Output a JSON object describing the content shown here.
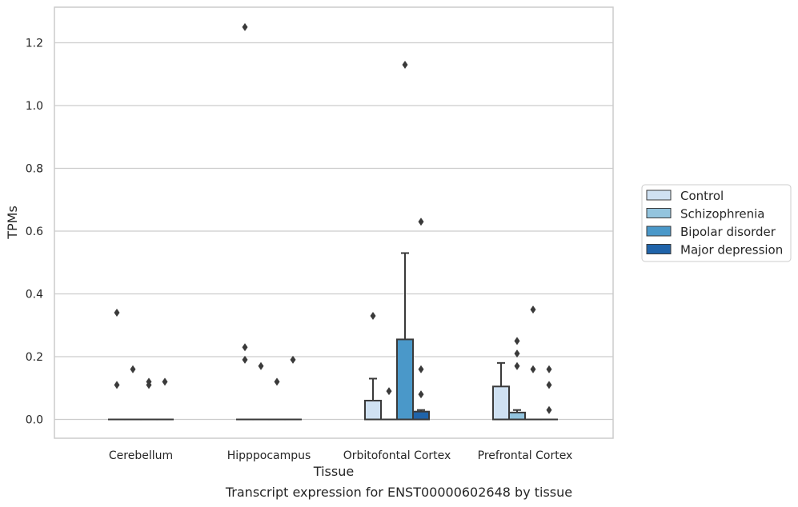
{
  "chart_data": {
    "type": "box",
    "xlabel": "Tissue",
    "ylabel": "TPMs",
    "ylim": [
      -0.06,
      1.32
    ],
    "yticks": [
      0.0,
      0.2,
      0.4,
      0.6,
      0.8,
      1.0,
      1.2
    ],
    "ytick_labels": [
      "0.0",
      "0.2",
      "0.4",
      "0.6",
      "0.8",
      "1.0",
      "1.2"
    ],
    "grid": "horizontal",
    "legend_position": "right",
    "categories": [
      "Cerebellum",
      "Hipppocampus",
      "Orbitofontal Cortex",
      "Prefrontal Cortex"
    ],
    "series": [
      {
        "name": "Control",
        "color": "#cfe1f2",
        "boxes": [
          {
            "q1": 0,
            "median": 0,
            "q3": 0,
            "whisker_low": 0,
            "whisker_high": 0,
            "outliers": [
              0.34,
              0.11
            ]
          },
          {
            "q1": 0,
            "median": 0,
            "q3": 0,
            "whisker_low": 0,
            "whisker_high": 0,
            "outliers": [
              1.25,
              0.23,
              0.19
            ]
          },
          {
            "q1": 0,
            "median": 0,
            "q3": 0.06,
            "whisker_low": 0,
            "whisker_high": 0.13,
            "outliers": [
              0.33
            ]
          },
          {
            "q1": 0,
            "median": 0,
            "q3": 0.105,
            "whisker_low": 0,
            "whisker_high": 0.18,
            "outliers": []
          }
        ]
      },
      {
        "name": "Schizophrenia",
        "color": "#93c4de",
        "boxes": [
          {
            "q1": 0,
            "median": 0,
            "q3": 0,
            "whisker_low": 0,
            "whisker_high": 0,
            "outliers": [
              0.16
            ]
          },
          {
            "q1": 0,
            "median": 0,
            "q3": 0,
            "whisker_low": 0,
            "whisker_high": 0,
            "outliers": [
              0.17
            ]
          },
          {
            "q1": 0,
            "median": 0,
            "q3": 0,
            "whisker_low": 0,
            "whisker_high": 0,
            "outliers": [
              0.09
            ]
          },
          {
            "q1": 0,
            "median": 0,
            "q3": 0.022,
            "whisker_low": 0,
            "whisker_high": 0.03,
            "outliers": [
              0.25,
              0.21,
              0.17
            ]
          }
        ]
      },
      {
        "name": "Bipolar disorder",
        "color": "#4a98c9",
        "boxes": [
          {
            "q1": 0,
            "median": 0,
            "q3": 0,
            "whisker_low": 0,
            "whisker_high": 0,
            "outliers": [
              0.12,
              0.11
            ]
          },
          {
            "q1": 0,
            "median": 0,
            "q3": 0,
            "whisker_low": 0,
            "whisker_high": 0,
            "outliers": [
              0.12
            ]
          },
          {
            "q1": 0,
            "median": 0,
            "q3": 0.255,
            "whisker_low": 0,
            "whisker_high": 0.53,
            "outliers": [
              1.13
            ]
          },
          {
            "q1": 0,
            "median": 0,
            "q3": 0,
            "whisker_low": 0,
            "whisker_high": 0,
            "outliers": [
              0.35,
              0.16
            ]
          }
        ]
      },
      {
        "name": "Major depression",
        "color": "#2064aa",
        "boxes": [
          {
            "q1": 0,
            "median": 0,
            "q3": 0,
            "whisker_low": 0,
            "whisker_high": 0,
            "outliers": [
              0.12
            ]
          },
          {
            "q1": 0,
            "median": 0,
            "q3": 0,
            "whisker_low": 0,
            "whisker_high": 0,
            "outliers": [
              0.19
            ]
          },
          {
            "q1": 0,
            "median": 0,
            "q3": 0.025,
            "whisker_low": 0,
            "whisker_high": 0.03,
            "outliers": [
              0.63,
              0.16,
              0.08
            ]
          },
          {
            "q1": 0,
            "median": 0,
            "q3": 0,
            "whisker_low": 0,
            "whisker_high": 0,
            "outliers": [
              0.16,
              0.11,
              0.03
            ]
          }
        ]
      }
    ]
  },
  "caption": "Transcript expression for ENST00000602648 by tissue"
}
